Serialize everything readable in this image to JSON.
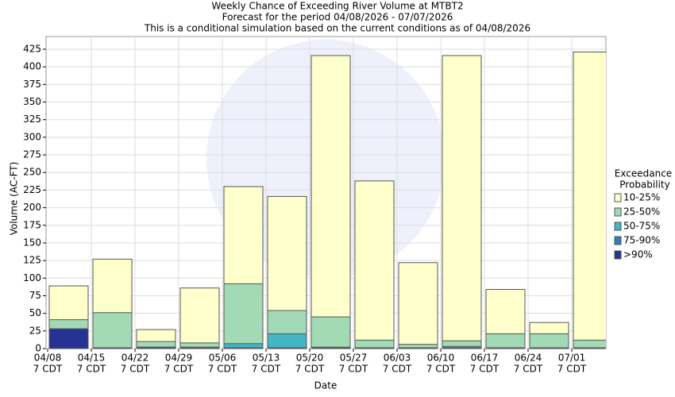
{
  "chart_data": {
    "type": "bar",
    "overlap": true,
    "title": "Weekly Chance of Exceeding River Volume at MTBT2",
    "subtitle": "Forecast for the period 04/08/2026 - 07/07/2026",
    "note": "This is a conditional simulation based on the current conditions as of 04/08/2026",
    "x_label": "Date",
    "y_label": "Volume (AC-FT)",
    "legend_title": [
      "Exceedance",
      "Probability"
    ],
    "categories": [
      [
        "04/08",
        "7 CDT"
      ],
      [
        "04/15",
        "7 CDT"
      ],
      [
        "04/22",
        "7 CDT"
      ],
      [
        "04/29",
        "7 CDT"
      ],
      [
        "05/06",
        "7 CDT"
      ],
      [
        "05/13",
        "7 CDT"
      ],
      [
        "05/20",
        "7 CDT"
      ],
      [
        "05/27",
        "7 CDT"
      ],
      [
        "06/03",
        "7 CDT"
      ],
      [
        "06/10",
        "7 CDT"
      ],
      [
        "06/17",
        "7 CDT"
      ],
      [
        "06/24",
        "7 CDT"
      ],
      [
        "07/01",
        "7 CDT"
      ]
    ],
    "series": [
      {
        "name": "10-25%",
        "color": "#ffffcc",
        "values": [
          89,
          127,
          27,
          86,
          230,
          216,
          416,
          238,
          122,
          416,
          84,
          37,
          421
        ]
      },
      {
        "name": "25-50%",
        "color": "#a1dab4",
        "values": [
          41,
          51,
          10,
          8,
          92,
          54,
          45,
          12,
          6,
          11,
          21,
          21,
          12
        ]
      },
      {
        "name": "50-75%",
        "color": "#41b6c4",
        "values": [
          28,
          1,
          2,
          2,
          7,
          21,
          2,
          1,
          1,
          3,
          1,
          1,
          1
        ]
      },
      {
        "name": "75-90%",
        "color": "#2c7fb8",
        "values": [
          28,
          1,
          2,
          1,
          1,
          1,
          1,
          1,
          1,
          1,
          1,
          1,
          1
        ]
      },
      {
        "name": ">90%",
        "color": "#253494",
        "values": [
          28,
          1,
          1,
          1,
          1,
          1,
          1,
          1,
          1,
          1,
          1,
          1,
          1
        ]
      }
    ],
    "ylim": [
      0,
      425
    ],
    "yticks": [
      0,
      25,
      50,
      75,
      100,
      125,
      150,
      175,
      200,
      225,
      250,
      275,
      300,
      325,
      350,
      375,
      400,
      425
    ],
    "grid": true
  }
}
